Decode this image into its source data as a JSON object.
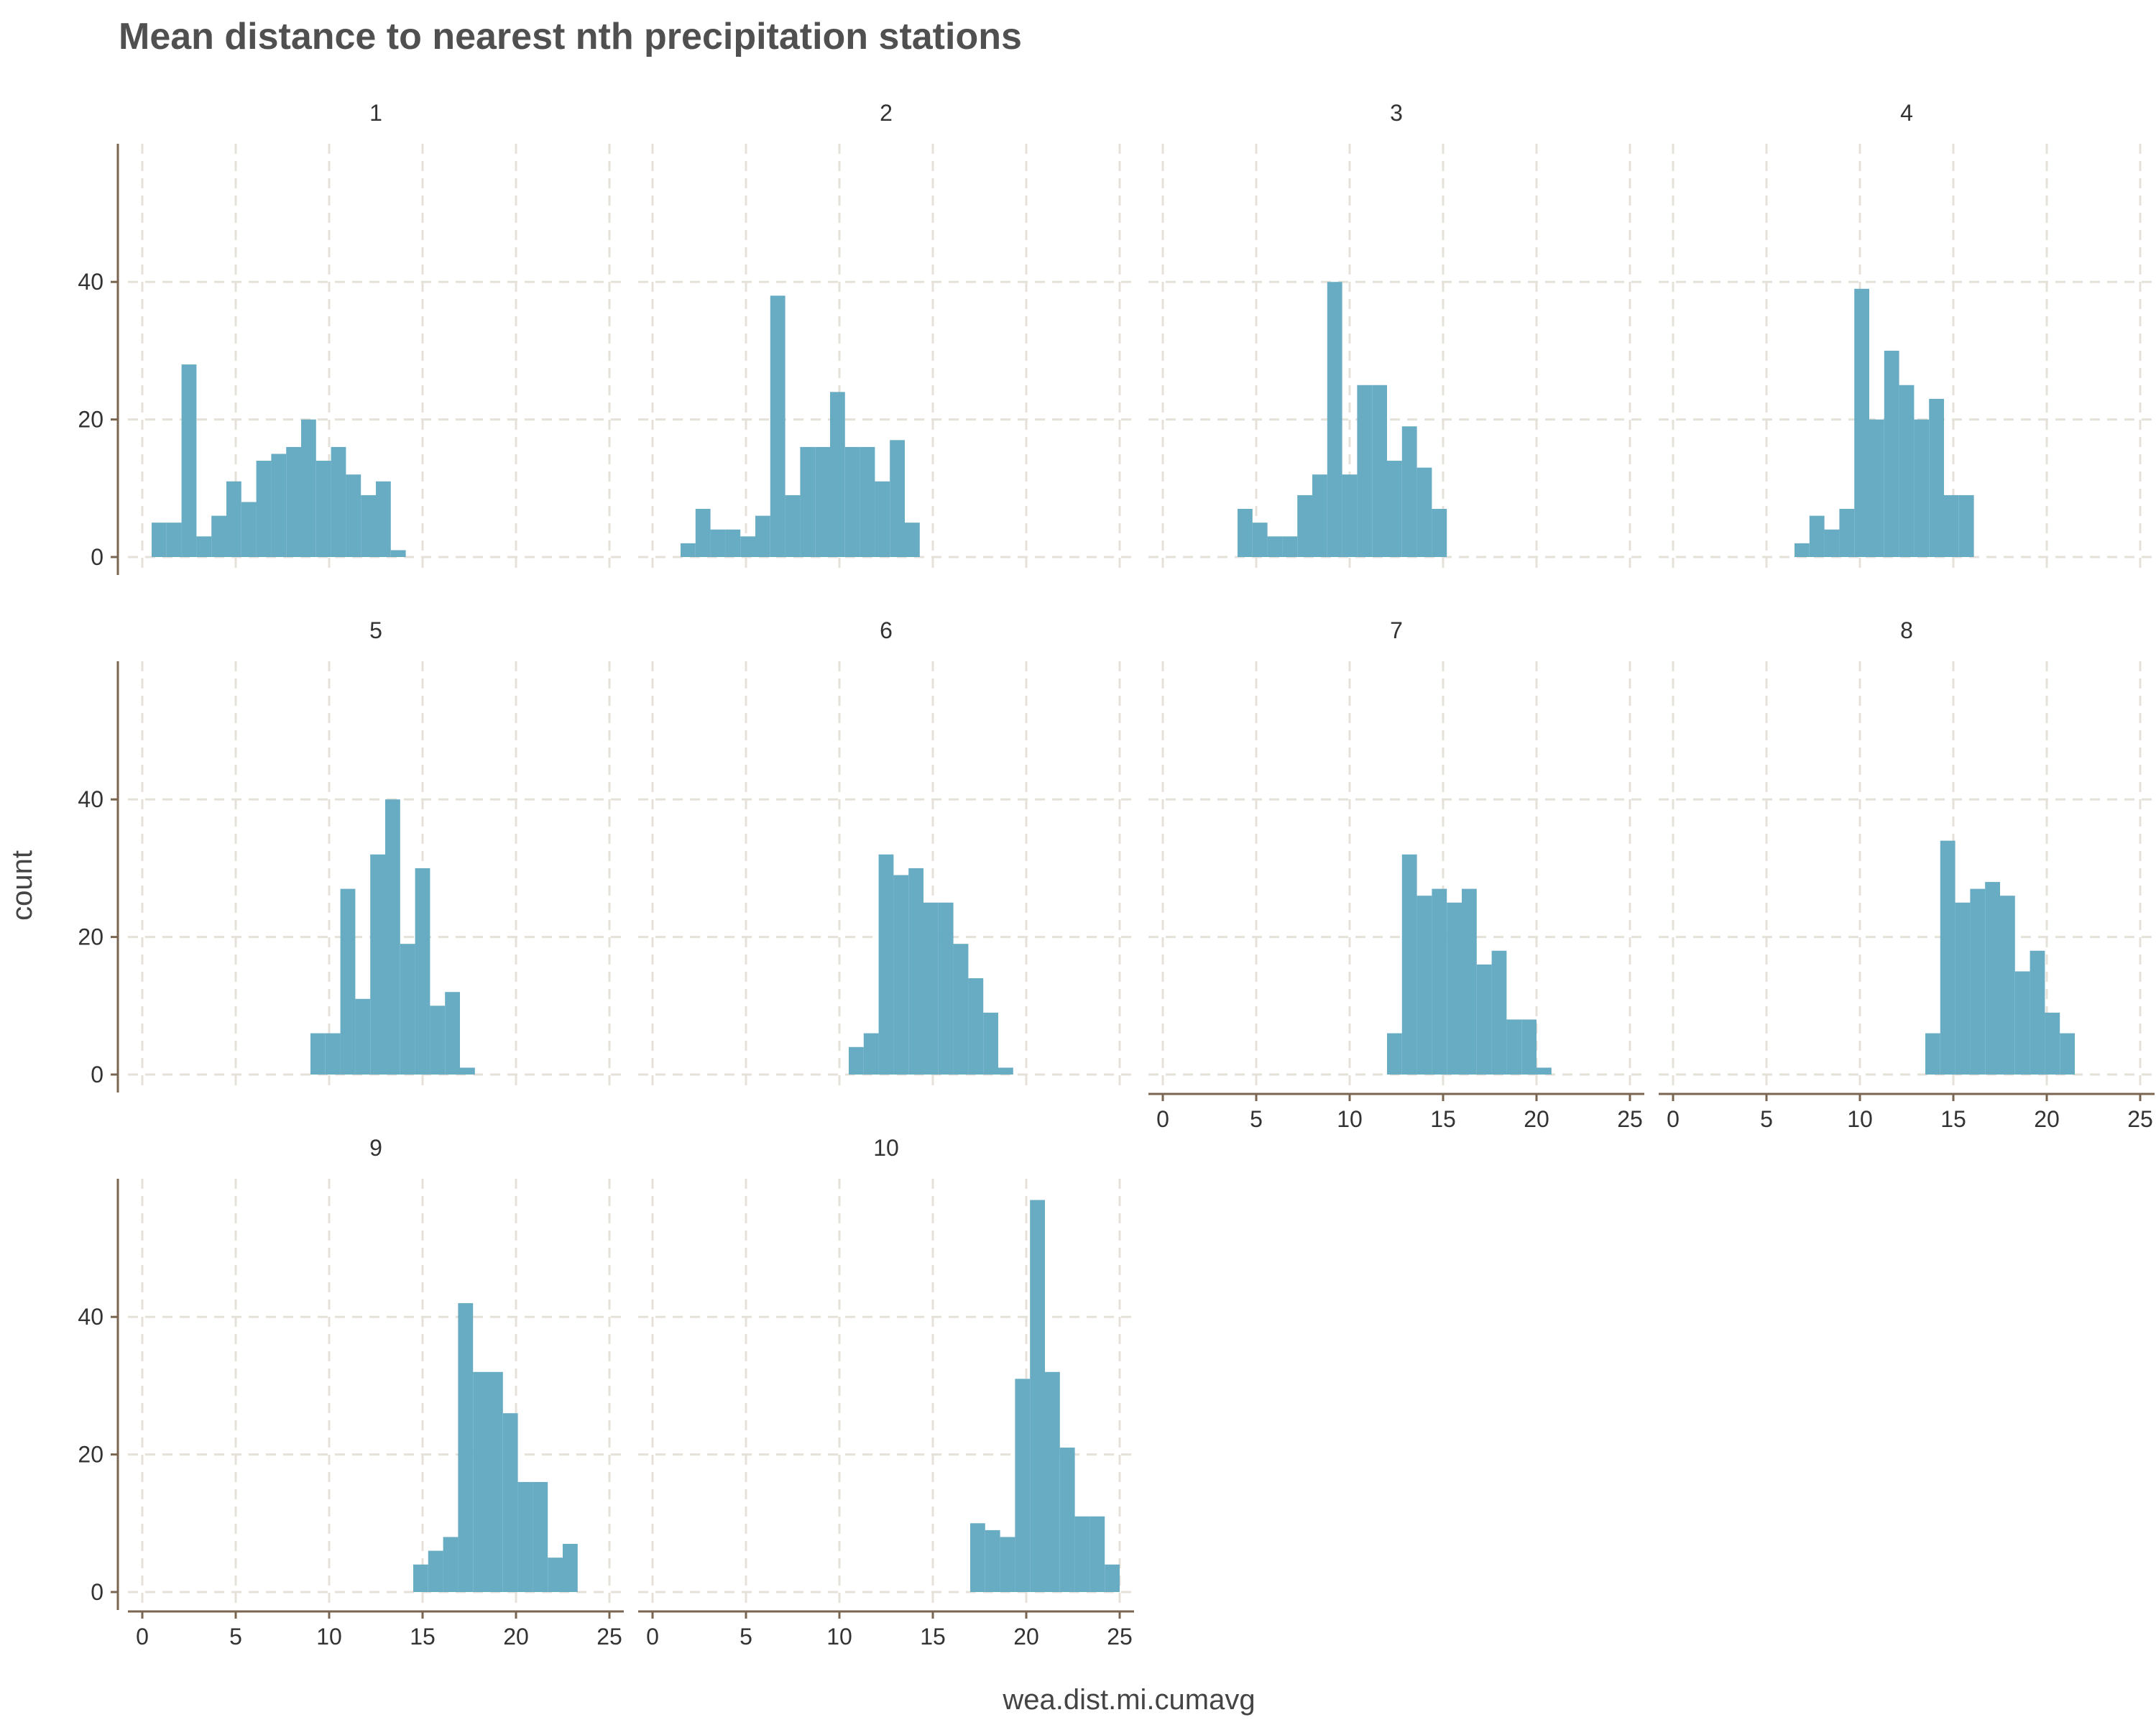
{
  "chart_data": {
    "type": "bar",
    "title": "Mean distance to nearest nth precipitation stations",
    "xlabel": "wea.dist.mi.cumavg",
    "ylabel": "count",
    "xlim": [
      0,
      25
    ],
    "ylim": [
      0,
      58
    ],
    "x_ticks": [
      0,
      5,
      10,
      15,
      20,
      25
    ],
    "y_ticks": [
      0,
      20,
      40
    ],
    "grid": true,
    "bar_color": "#67ACC3",
    "axis_color": "#7A6650",
    "grid_color": "#E6E1D8",
    "panels": [
      {
        "label": "1",
        "bins": [
          [
            0.5,
            5
          ],
          [
            1.3,
            5
          ],
          [
            2.1,
            28
          ],
          [
            2.9,
            3
          ],
          [
            3.7,
            6
          ],
          [
            4.5,
            11
          ],
          [
            5.3,
            8
          ],
          [
            6.1,
            14
          ],
          [
            6.9,
            15
          ],
          [
            7.7,
            16
          ],
          [
            8.5,
            20
          ],
          [
            9.3,
            14
          ],
          [
            10.1,
            16
          ],
          [
            10.9,
            12
          ],
          [
            11.7,
            9
          ],
          [
            12.5,
            11
          ],
          [
            13.3,
            1
          ]
        ]
      },
      {
        "label": "2",
        "bins": [
          [
            1.5,
            2
          ],
          [
            2.3,
            7
          ],
          [
            3.1,
            4
          ],
          [
            3.9,
            4
          ],
          [
            4.7,
            3
          ],
          [
            5.5,
            6
          ],
          [
            6.3,
            38
          ],
          [
            7.1,
            9
          ],
          [
            7.9,
            16
          ],
          [
            8.7,
            16
          ],
          [
            9.5,
            24
          ],
          [
            10.3,
            16
          ],
          [
            11.1,
            16
          ],
          [
            11.9,
            11
          ],
          [
            12.7,
            17
          ],
          [
            13.5,
            5
          ]
        ]
      },
      {
        "label": "3",
        "bins": [
          [
            4.0,
            7
          ],
          [
            4.8,
            5
          ],
          [
            5.6,
            3
          ],
          [
            6.4,
            3
          ],
          [
            7.2,
            9
          ],
          [
            8.0,
            12
          ],
          [
            8.8,
            40
          ],
          [
            9.6,
            12
          ],
          [
            10.4,
            25
          ],
          [
            11.2,
            25
          ],
          [
            12.0,
            14
          ],
          [
            12.8,
            19
          ],
          [
            13.6,
            13
          ],
          [
            14.4,
            7
          ]
        ]
      },
      {
        "label": "4",
        "bins": [
          [
            6.5,
            2
          ],
          [
            7.3,
            6
          ],
          [
            8.1,
            4
          ],
          [
            8.9,
            7
          ],
          [
            9.7,
            39
          ],
          [
            10.5,
            20
          ],
          [
            11.3,
            30
          ],
          [
            12.1,
            25
          ],
          [
            12.9,
            20
          ],
          [
            13.7,
            23
          ],
          [
            14.5,
            9
          ],
          [
            15.3,
            9
          ]
        ]
      },
      {
        "label": "5",
        "bins": [
          [
            9.0,
            6
          ],
          [
            9.8,
            6
          ],
          [
            10.6,
            27
          ],
          [
            11.4,
            11
          ],
          [
            12.2,
            32
          ],
          [
            13.0,
            40
          ],
          [
            13.8,
            19
          ],
          [
            14.6,
            30
          ],
          [
            15.4,
            10
          ],
          [
            16.2,
            12
          ],
          [
            17.0,
            1
          ]
        ]
      },
      {
        "label": "6",
        "bins": [
          [
            10.5,
            4
          ],
          [
            11.3,
            6
          ],
          [
            12.1,
            32
          ],
          [
            12.9,
            29
          ],
          [
            13.7,
            30
          ],
          [
            14.5,
            25
          ],
          [
            15.3,
            25
          ],
          [
            16.1,
            19
          ],
          [
            16.9,
            14
          ],
          [
            17.7,
            9
          ],
          [
            18.5,
            1
          ]
        ]
      },
      {
        "label": "7",
        "bins": [
          [
            12.0,
            6
          ],
          [
            12.8,
            32
          ],
          [
            13.6,
            26
          ],
          [
            14.4,
            27
          ],
          [
            15.2,
            25
          ],
          [
            16.0,
            27
          ],
          [
            16.8,
            16
          ],
          [
            17.6,
            18
          ],
          [
            18.4,
            8
          ],
          [
            19.2,
            8
          ],
          [
            20.0,
            1
          ]
        ]
      },
      {
        "label": "8",
        "bins": [
          [
            13.5,
            6
          ],
          [
            14.3,
            34
          ],
          [
            15.1,
            25
          ],
          [
            15.9,
            27
          ],
          [
            16.7,
            28
          ],
          [
            17.5,
            26
          ],
          [
            18.3,
            15
          ],
          [
            19.1,
            18
          ],
          [
            19.9,
            9
          ],
          [
            20.7,
            6
          ]
        ]
      },
      {
        "label": "9",
        "bins": [
          [
            14.5,
            4
          ],
          [
            15.3,
            6
          ],
          [
            16.1,
            8
          ],
          [
            16.9,
            42
          ],
          [
            17.7,
            32
          ],
          [
            18.5,
            32
          ],
          [
            19.3,
            26
          ],
          [
            20.1,
            16
          ],
          [
            20.9,
            16
          ],
          [
            21.7,
            5
          ],
          [
            22.5,
            7
          ]
        ]
      },
      {
        "label": "10",
        "bins": [
          [
            17.0,
            10
          ],
          [
            17.8,
            9
          ],
          [
            18.6,
            8
          ],
          [
            19.4,
            31
          ],
          [
            20.2,
            57
          ],
          [
            21.0,
            32
          ],
          [
            21.8,
            21
          ],
          [
            22.6,
            11
          ],
          [
            23.4,
            11
          ],
          [
            24.2,
            4
          ]
        ]
      }
    ]
  }
}
